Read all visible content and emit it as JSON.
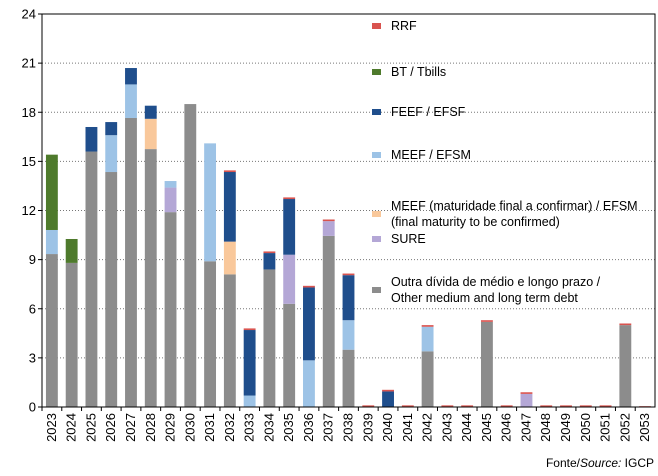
{
  "chart_data": {
    "type": "stacked-bar",
    "categories": [
      "2023",
      "2024",
      "2025",
      "2026",
      "2027",
      "2028",
      "2029",
      "2030",
      "2031",
      "2032",
      "2033",
      "2034",
      "2035",
      "2036",
      "2037",
      "2038",
      "2039",
      "2040",
      "2041",
      "2042",
      "2043",
      "2044",
      "2045",
      "2046",
      "2047",
      "2048",
      "2049",
      "2050",
      "2051",
      "2052",
      "2053"
    ],
    "series": [
      {
        "name": "Outra dívida de médio e longo prazo / Other medium and long term debt",
        "color": "#8c8c8c",
        "values": [
          9.34,
          8.8,
          15.6,
          14.35,
          17.65,
          15.75,
          11.9,
          18.5,
          8.9,
          8.1,
          0,
          8.4,
          6.3,
          0,
          10.45,
          3.5,
          0,
          0,
          0,
          3.4,
          0,
          0,
          5.2,
          0,
          0,
          0,
          0,
          0,
          0,
          5.0,
          0
        ]
      },
      {
        "name": "SURE",
        "color": "#b4a7d6",
        "values": [
          0,
          0,
          0,
          0,
          0,
          0,
          1.5,
          0,
          0,
          0,
          0,
          0,
          3.0,
          0,
          0.9,
          0,
          0,
          0,
          0,
          0,
          0,
          0,
          0,
          0,
          0.8,
          0,
          0,
          0,
          0,
          0,
          0
        ]
      },
      {
        "name": "MEEF (maturidade final a confirmar) / EFSM (final maturity to be confirmed)",
        "color": "#f9c89b",
        "values": [
          0,
          0,
          0,
          0,
          0,
          1.85,
          0,
          0,
          0,
          2.0,
          0,
          0,
          0,
          0,
          0,
          0,
          0,
          0,
          0,
          0,
          0,
          0,
          0,
          0,
          0,
          0,
          0,
          0,
          0,
          0,
          0
        ]
      },
      {
        "name": "MEEF / EFSM",
        "color": "#9dc3e6",
        "values": [
          1.47,
          0,
          0,
          2.25,
          2.05,
          0,
          0.4,
          0,
          7.2,
          0,
          0.7,
          0,
          0,
          2.85,
          0,
          1.8,
          0,
          0,
          0,
          1.5,
          0,
          0,
          0,
          0,
          0,
          0,
          0,
          0,
          0,
          0,
          0
        ]
      },
      {
        "name": "FEEF / EFSF",
        "color": "#1f4e8c",
        "values": [
          0,
          0,
          1.5,
          0.8,
          1.0,
          0.8,
          0,
          0,
          0,
          4.25,
          4.0,
          1.0,
          3.4,
          4.45,
          0,
          2.75,
          0,
          0.95,
          0,
          0,
          0,
          0,
          0,
          0,
          0,
          0,
          0,
          0,
          0,
          0,
          0
        ]
      },
      {
        "name": "BT / Tbills",
        "color": "#4e7a2c",
        "values": [
          4.6,
          1.46,
          0,
          0,
          0,
          0,
          0,
          0,
          0,
          0,
          0,
          0,
          0,
          0,
          0,
          0,
          0,
          0,
          0,
          0,
          0,
          0,
          0,
          0,
          0,
          0,
          0,
          0,
          0,
          0,
          0
        ]
      },
      {
        "name": "RRF",
        "color": "#d9534f",
        "values": [
          0,
          0,
          0,
          0,
          0,
          0,
          0,
          0,
          0,
          0.1,
          0.1,
          0.1,
          0.1,
          0.1,
          0.1,
          0.1,
          0.1,
          0.1,
          0.1,
          0.1,
          0.1,
          0.1,
          0.1,
          0.1,
          0.1,
          0.1,
          0.1,
          0.1,
          0.1,
          0.1,
          0.05
        ]
      }
    ],
    "ylim": [
      0,
      24
    ],
    "yticks": [
      0,
      3,
      6,
      9,
      12,
      15,
      18,
      21,
      24
    ],
    "grid": true,
    "legend": "right",
    "source": {
      "prefix": "Fonte/",
      "italic": "Source:",
      "suffix": " IGCP"
    }
  }
}
